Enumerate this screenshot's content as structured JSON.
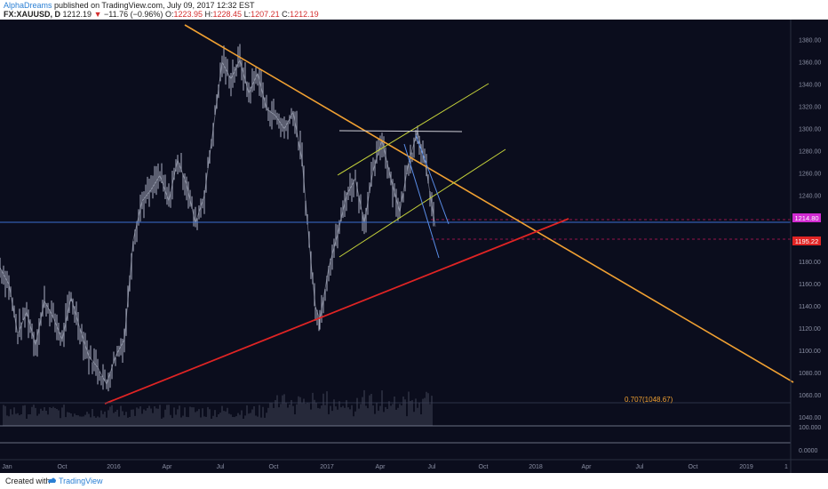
{
  "header": {
    "author": "AlphaDreams",
    "published": "published on TradingView.com, July 09, 2017 12:32 EST",
    "symbol": "FX:XAUUSD, D",
    "last": "1212.19",
    "change_arrow": "▼",
    "change": "−11.76 (−0.96%)",
    "open_label": "O:",
    "open": "1223.95",
    "high_label": "H:",
    "high": "1228.45",
    "low_label": "L:",
    "low": "1207.21",
    "close_label": "C:",
    "close": "1212.19"
  },
  "footer": {
    "created_with": "Created with",
    "brand": "TradingView"
  },
  "colors": {
    "background": "#0b0d1d",
    "candles": "#c8cde0",
    "orange_trend": "#f0a032",
    "red_trend": "#e02424",
    "channel": "#c5d23a",
    "current_price": "#d12bd1",
    "support_price": "#e02424"
  },
  "chart_data": {
    "type": "line",
    "series": [
      {
        "values": [
          [
            0,
            1175
          ],
          [
            10,
            1160
          ],
          [
            20,
            1115
          ],
          [
            30,
            1135
          ],
          [
            40,
            1105
          ],
          [
            50,
            1145
          ],
          [
            60,
            1130
          ],
          [
            70,
            1110
          ],
          [
            80,
            1148
          ],
          [
            90,
            1120
          ],
          [
            100,
            1095
          ],
          [
            110,
            1085
          ],
          [
            120,
            1070
          ],
          [
            130,
            1095
          ],
          [
            140,
            1110
          ],
          [
            150,
            1200
          ],
          [
            160,
            1235
          ],
          [
            170,
            1245
          ],
          [
            180,
            1258
          ],
          [
            190,
            1235
          ],
          [
            200,
            1272
          ],
          [
            210,
            1250
          ],
          [
            220,
            1215
          ],
          [
            230,
            1240
          ],
          [
            240,
            1300
          ],
          [
            250,
            1360
          ],
          [
            260,
            1345
          ],
          [
            270,
            1362
          ],
          [
            280,
            1332
          ],
          [
            290,
            1350
          ],
          [
            300,
            1318
          ],
          [
            310,
            1312
          ],
          [
            320,
            1300
          ],
          [
            330,
            1315
          ],
          [
            340,
            1272
          ],
          [
            350,
            1180
          ],
          [
            355,
            1140
          ],
          [
            360,
            1128
          ],
          [
            370,
            1175
          ],
          [
            380,
            1205
          ],
          [
            390,
            1240
          ],
          [
            400,
            1255
          ],
          [
            410,
            1215
          ],
          [
            420,
            1262
          ],
          [
            430,
            1290
          ],
          [
            440,
            1255
          ],
          [
            450,
            1225
          ],
          [
            460,
            1270
          ],
          [
            470,
            1298
          ],
          [
            480,
            1262
          ],
          [
            490,
            1212
          ]
        ]
      }
    ],
    "y_ticks": [
      "1380.00",
      "1360.00",
      "1340.00",
      "1320.00",
      "1300.00",
      "1280.00",
      "1260.00",
      "1240.00",
      "1220.00",
      "1200.00",
      "1180.00",
      "1160.00",
      "1140.00",
      "1120.00",
      "1100.00",
      "1080.00",
      "1060.00",
      "1040.00"
    ],
    "volume_ticks": [
      "100.000",
      "0.0000"
    ],
    "x_ticks": [
      "Jan",
      "Oct",
      "2016",
      "Apr",
      "Jul",
      "Oct",
      "2017",
      "Apr",
      "Jul",
      "Oct",
      "2018",
      "Apr",
      "Jul",
      "Oct",
      "2019",
      "1"
    ],
    "price_labels": {
      "current": "1214.80",
      "support": "1195.22"
    },
    "fib_label": "0.707(1048.67)",
    "ylim": [
      1030,
      1392
    ],
    "grid": false
  }
}
